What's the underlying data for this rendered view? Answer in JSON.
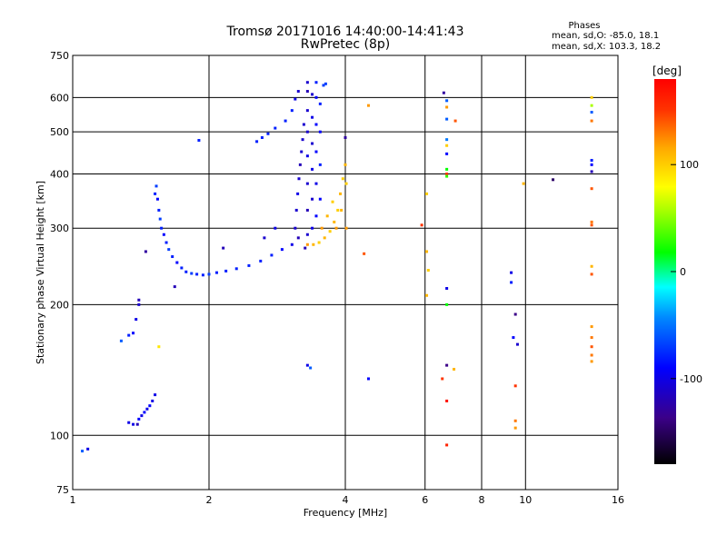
{
  "chart_data": {
    "type": "scatter",
    "title": "Tromsø 20171016 14:40:00-14:41:43",
    "subtitle": "RwPretec (8p)",
    "xlabel": "Frequency [MHz]",
    "ylabel": "Stationary phase Virtual Height [km]",
    "xscale": "log",
    "yscale": "log",
    "xlim": [
      1,
      16
    ],
    "ylim": [
      75,
      750
    ],
    "xticks": [
      1,
      2,
      4,
      6,
      8,
      10,
      16
    ],
    "yticks": [
      75,
      100,
      200,
      300,
      400,
      500,
      600,
      750
    ],
    "grid": true,
    "stats": {
      "header": "Phases",
      "line_o": "mean, sd,O: -85.0, 18.1",
      "line_x": "mean, sd,X: 103.3, 18.2"
    },
    "colorbar": {
      "label": "[deg]",
      "min": -180,
      "max": 180,
      "ticks": [
        "100",
        "0",
        "-100"
      ],
      "tick_values": [
        100,
        0,
        -100
      ]
    },
    "points": [
      {
        "x": 1.05,
        "y": 92,
        "c": -60
      },
      {
        "x": 1.08,
        "y": 93,
        "c": -100
      },
      {
        "x": 1.28,
        "y": 165,
        "c": -60
      },
      {
        "x": 1.33,
        "y": 170,
        "c": -80
      },
      {
        "x": 1.36,
        "y": 172,
        "c": -90
      },
      {
        "x": 1.38,
        "y": 185,
        "c": -100
      },
      {
        "x": 1.4,
        "y": 200,
        "c": -110
      },
      {
        "x": 1.4,
        "y": 205,
        "c": -120
      },
      {
        "x": 1.45,
        "y": 265,
        "c": -130
      },
      {
        "x": 1.55,
        "y": 160,
        "c": 90
      },
      {
        "x": 1.33,
        "y": 107,
        "c": -100
      },
      {
        "x": 1.36,
        "y": 106,
        "c": -100
      },
      {
        "x": 1.4,
        "y": 109,
        "c": -90
      },
      {
        "x": 1.42,
        "y": 111,
        "c": -100
      },
      {
        "x": 1.44,
        "y": 113,
        "c": -90
      },
      {
        "x": 1.46,
        "y": 115,
        "c": -100
      },
      {
        "x": 1.48,
        "y": 117,
        "c": -90
      },
      {
        "x": 1.5,
        "y": 120,
        "c": -100
      },
      {
        "x": 1.52,
        "y": 124,
        "c": -100
      },
      {
        "x": 1.39,
        "y": 106,
        "c": -120
      },
      {
        "x": 1.52,
        "y": 360,
        "c": -80
      },
      {
        "x": 1.53,
        "y": 375,
        "c": -70
      },
      {
        "x": 1.54,
        "y": 350,
        "c": -90
      },
      {
        "x": 1.55,
        "y": 330,
        "c": -80
      },
      {
        "x": 1.56,
        "y": 315,
        "c": -70
      },
      {
        "x": 1.57,
        "y": 300,
        "c": -80
      },
      {
        "x": 1.59,
        "y": 290,
        "c": -90
      },
      {
        "x": 1.61,
        "y": 278,
        "c": -80
      },
      {
        "x": 1.63,
        "y": 268,
        "c": -70
      },
      {
        "x": 1.66,
        "y": 258,
        "c": -80
      },
      {
        "x": 1.7,
        "y": 250,
        "c": -90
      },
      {
        "x": 1.74,
        "y": 243,
        "c": -80
      },
      {
        "x": 1.78,
        "y": 238,
        "c": -80
      },
      {
        "x": 1.83,
        "y": 236,
        "c": -70
      },
      {
        "x": 1.88,
        "y": 235,
        "c": -80
      },
      {
        "x": 1.94,
        "y": 234,
        "c": -80
      },
      {
        "x": 2.0,
        "y": 235,
        "c": -70
      },
      {
        "x": 2.08,
        "y": 237,
        "c": -80
      },
      {
        "x": 2.18,
        "y": 239,
        "c": -80
      },
      {
        "x": 2.3,
        "y": 242,
        "c": -80
      },
      {
        "x": 2.45,
        "y": 246,
        "c": -80
      },
      {
        "x": 2.6,
        "y": 252,
        "c": -80
      },
      {
        "x": 2.75,
        "y": 260,
        "c": -80
      },
      {
        "x": 2.9,
        "y": 268,
        "c": -90
      },
      {
        "x": 3.05,
        "y": 275,
        "c": -100
      },
      {
        "x": 1.68,
        "y": 220,
        "c": -120
      },
      {
        "x": 1.9,
        "y": 478,
        "c": -80
      },
      {
        "x": 2.15,
        "y": 270,
        "c": -120
      },
      {
        "x": 2.65,
        "y": 285,
        "c": -110
      },
      {
        "x": 2.8,
        "y": 300,
        "c": -100
      },
      {
        "x": 2.55,
        "y": 475,
        "c": -80
      },
      {
        "x": 2.62,
        "y": 485,
        "c": -80
      },
      {
        "x": 2.7,
        "y": 495,
        "c": -80
      },
      {
        "x": 2.8,
        "y": 510,
        "c": -80
      },
      {
        "x": 2.95,
        "y": 530,
        "c": -80
      },
      {
        "x": 3.05,
        "y": 560,
        "c": -80
      },
      {
        "x": 3.1,
        "y": 595,
        "c": -100
      },
      {
        "x": 3.15,
        "y": 620,
        "c": -110
      },
      {
        "x": 3.1,
        "y": 300,
        "c": -110
      },
      {
        "x": 3.12,
        "y": 330,
        "c": -110
      },
      {
        "x": 3.14,
        "y": 360,
        "c": -100
      },
      {
        "x": 3.16,
        "y": 390,
        "c": -110
      },
      {
        "x": 3.18,
        "y": 420,
        "c": -120
      },
      {
        "x": 3.2,
        "y": 450,
        "c": -110
      },
      {
        "x": 3.22,
        "y": 480,
        "c": -110
      },
      {
        "x": 3.24,
        "y": 520,
        "c": -110
      },
      {
        "x": 3.3,
        "y": 290,
        "c": -110
      },
      {
        "x": 3.3,
        "y": 330,
        "c": -120
      },
      {
        "x": 3.3,
        "y": 380,
        "c": -110
      },
      {
        "x": 3.3,
        "y": 440,
        "c": -100
      },
      {
        "x": 3.3,
        "y": 500,
        "c": -110
      },
      {
        "x": 3.3,
        "y": 560,
        "c": -110
      },
      {
        "x": 3.3,
        "y": 620,
        "c": -120
      },
      {
        "x": 3.3,
        "y": 650,
        "c": -110
      },
      {
        "x": 3.38,
        "y": 300,
        "c": -100
      },
      {
        "x": 3.38,
        "y": 350,
        "c": -110
      },
      {
        "x": 3.38,
        "y": 410,
        "c": -100
      },
      {
        "x": 3.38,
        "y": 470,
        "c": -110
      },
      {
        "x": 3.38,
        "y": 540,
        "c": -100
      },
      {
        "x": 3.38,
        "y": 610,
        "c": -110
      },
      {
        "x": 3.45,
        "y": 320,
        "c": -90
      },
      {
        "x": 3.45,
        "y": 380,
        "c": -100
      },
      {
        "x": 3.45,
        "y": 450,
        "c": -90
      },
      {
        "x": 3.45,
        "y": 520,
        "c": -90
      },
      {
        "x": 3.45,
        "y": 600,
        "c": -90
      },
      {
        "x": 3.45,
        "y": 650,
        "c": -80
      },
      {
        "x": 3.52,
        "y": 350,
        "c": -90
      },
      {
        "x": 3.52,
        "y": 420,
        "c": -80
      },
      {
        "x": 3.52,
        "y": 500,
        "c": -90
      },
      {
        "x": 3.52,
        "y": 580,
        "c": -80
      },
      {
        "x": 3.58,
        "y": 640,
        "c": -70
      },
      {
        "x": 3.62,
        "y": 645,
        "c": -70
      },
      {
        "x": 3.26,
        "y": 270,
        "c": -120
      },
      {
        "x": 3.15,
        "y": 285,
        "c": -120
      },
      {
        "x": 3.3,
        "y": 275,
        "c": 120
      },
      {
        "x": 3.4,
        "y": 275,
        "c": 110
      },
      {
        "x": 3.5,
        "y": 278,
        "c": 100
      },
      {
        "x": 3.6,
        "y": 285,
        "c": 110
      },
      {
        "x": 3.7,
        "y": 295,
        "c": 100
      },
      {
        "x": 3.78,
        "y": 310,
        "c": 110
      },
      {
        "x": 3.85,
        "y": 330,
        "c": 100
      },
      {
        "x": 3.9,
        "y": 360,
        "c": 110
      },
      {
        "x": 3.95,
        "y": 390,
        "c": 100
      },
      {
        "x": 4.0,
        "y": 420,
        "c": 110
      },
      {
        "x": 3.55,
        "y": 300,
        "c": 120
      },
      {
        "x": 3.65,
        "y": 320,
        "c": 110
      },
      {
        "x": 3.75,
        "y": 345,
        "c": 100
      },
      {
        "x": 3.82,
        "y": 300,
        "c": 120
      },
      {
        "x": 3.92,
        "y": 330,
        "c": 110
      },
      {
        "x": 4.02,
        "y": 380,
        "c": 100
      },
      {
        "x": 4.02,
        "y": 300,
        "c": 120
      },
      {
        "x": 4.0,
        "y": 485,
        "c": -130
      },
      {
        "x": 4.5,
        "y": 575,
        "c": 120
      },
      {
        "x": 3.3,
        "y": 145,
        "c": -100
      },
      {
        "x": 3.35,
        "y": 143,
        "c": -60
      },
      {
        "x": 4.4,
        "y": 262,
        "c": 140
      },
      {
        "x": 4.5,
        "y": 135,
        "c": -90
      },
      {
        "x": 5.9,
        "y": 305,
        "c": 150
      },
      {
        "x": 6.05,
        "y": 360,
        "c": 100
      },
      {
        "x": 6.05,
        "y": 265,
        "c": 110
      },
      {
        "x": 6.1,
        "y": 240,
        "c": 100
      },
      {
        "x": 6.05,
        "y": 210,
        "c": 110
      },
      {
        "x": 6.6,
        "y": 615,
        "c": -130
      },
      {
        "x": 6.7,
        "y": 590,
        "c": -60
      },
      {
        "x": 6.7,
        "y": 570,
        "c": 120
      },
      {
        "x": 6.7,
        "y": 535,
        "c": -60
      },
      {
        "x": 6.7,
        "y": 480,
        "c": -50
      },
      {
        "x": 6.7,
        "y": 465,
        "c": 100
      },
      {
        "x": 6.7,
        "y": 445,
        "c": -90
      },
      {
        "x": 6.7,
        "y": 410,
        "c": 20
      },
      {
        "x": 6.7,
        "y": 400,
        "c": 150
      },
      {
        "x": 6.7,
        "y": 395,
        "c": 30
      },
      {
        "x": 6.7,
        "y": 218,
        "c": -100
      },
      {
        "x": 6.7,
        "y": 200,
        "c": 20
      },
      {
        "x": 6.7,
        "y": 145,
        "c": -140
      },
      {
        "x": 6.7,
        "y": 120,
        "c": 170
      },
      {
        "x": 6.7,
        "y": 95,
        "c": 160
      },
      {
        "x": 6.55,
        "y": 135,
        "c": 150
      },
      {
        "x": 6.95,
        "y": 142,
        "c": 110
      },
      {
        "x": 7.0,
        "y": 530,
        "c": 140
      },
      {
        "x": 9.3,
        "y": 237,
        "c": -100
      },
      {
        "x": 9.3,
        "y": 225,
        "c": -80
      },
      {
        "x": 9.5,
        "y": 190,
        "c": -140
      },
      {
        "x": 9.4,
        "y": 168,
        "c": -90
      },
      {
        "x": 9.6,
        "y": 162,
        "c": -110
      },
      {
        "x": 9.5,
        "y": 130,
        "c": 150
      },
      {
        "x": 9.5,
        "y": 108,
        "c": 130
      },
      {
        "x": 9.5,
        "y": 104,
        "c": 120
      },
      {
        "x": 9.9,
        "y": 380,
        "c": 110
      },
      {
        "x": 11.5,
        "y": 388,
        "c": -150
      },
      {
        "x": 14.0,
        "y": 600,
        "c": 100
      },
      {
        "x": 14.0,
        "y": 575,
        "c": 60
      },
      {
        "x": 14.0,
        "y": 555,
        "c": -60
      },
      {
        "x": 14.0,
        "y": 530,
        "c": 130
      },
      {
        "x": 14.0,
        "y": 430,
        "c": -80
      },
      {
        "x": 14.0,
        "y": 420,
        "c": -90
      },
      {
        "x": 14.0,
        "y": 405,
        "c": -120
      },
      {
        "x": 14.0,
        "y": 370,
        "c": 140
      },
      {
        "x": 14.0,
        "y": 310,
        "c": 130
      },
      {
        "x": 14.0,
        "y": 305,
        "c": 140
      },
      {
        "x": 14.0,
        "y": 245,
        "c": 110
      },
      {
        "x": 14.0,
        "y": 235,
        "c": 140
      },
      {
        "x": 14.0,
        "y": 178,
        "c": 120
      },
      {
        "x": 14.0,
        "y": 168,
        "c": 130
      },
      {
        "x": 14.0,
        "y": 160,
        "c": 140
      },
      {
        "x": 14.0,
        "y": 153,
        "c": 130
      },
      {
        "x": 14.0,
        "y": 148,
        "c": 120
      }
    ]
  }
}
